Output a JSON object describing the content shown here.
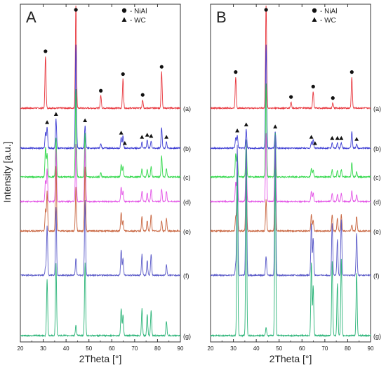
{
  "figure": {
    "y_axis_label": "Intensity [a.u.]"
  },
  "chart_data": [
    {
      "type": "line",
      "panel_letter": "A",
      "xlabel": "2Theta [°]",
      "ylabel": "",
      "xlim": [
        20,
        90
      ],
      "x_ticks": [
        20,
        30,
        40,
        50,
        60,
        70,
        80,
        90
      ],
      "y_ticks_shown": false,
      "legend": {
        "position": "top-right",
        "entries": [
          {
            "marker": "circle",
            "label": "- NiAl"
          },
          {
            "marker": "triangle",
            "label": "- WC"
          }
        ]
      },
      "series": [
        {
          "label": "(a)",
          "color": "#e8363d",
          "baseline": 0,
          "peaks": [
            [
              31.0,
              0.5
            ],
            [
              44.3,
              1.0
            ],
            [
              55.2,
              0.12
            ],
            [
              64.9,
              0.28
            ],
            [
              73.5,
              0.08
            ],
            [
              81.8,
              0.35
            ]
          ],
          "markers": [
            {
              "x": 31.0,
              "symbol": "circle"
            },
            {
              "x": 44.3,
              "symbol": "circle"
            },
            {
              "x": 55.2,
              "symbol": "circle"
            },
            {
              "x": 64.9,
              "symbol": "circle"
            },
            {
              "x": 73.5,
              "symbol": "circle"
            },
            {
              "x": 81.8,
              "symbol": "circle"
            }
          ]
        },
        {
          "label": "(b)",
          "color": "#3f3fd4",
          "baseline": 1,
          "peaks": [
            [
              31.0,
              0.15
            ],
            [
              31.7,
              0.2
            ],
            [
              35.6,
              0.28
            ],
            [
              44.3,
              1.0
            ],
            [
              48.3,
              0.22
            ],
            [
              55.2,
              0.04
            ],
            [
              64.1,
              0.1
            ],
            [
              64.9,
              0.12
            ],
            [
              73.2,
              0.06
            ],
            [
              75.5,
              0.08
            ],
            [
              77.2,
              0.07
            ],
            [
              81.8,
              0.2
            ],
            [
              83.9,
              0.06
            ]
          ],
          "markers": [
            {
              "x": 31.7,
              "symbol": "triangle"
            },
            {
              "x": 35.6,
              "symbol": "triangle"
            },
            {
              "x": 48.3,
              "symbol": "triangle"
            },
            {
              "x": 64.1,
              "symbol": "triangle"
            },
            {
              "x": 65.7,
              "symbol": "triangle"
            },
            {
              "x": 73.2,
              "symbol": "triangle"
            },
            {
              "x": 75.5,
              "symbol": "triangle"
            },
            {
              "x": 77.2,
              "symbol": "triangle"
            },
            {
              "x": 83.9,
              "symbol": "triangle"
            }
          ]
        },
        {
          "label": "(c)",
          "color": "#31d84a",
          "baseline": 2,
          "peaks": [
            [
              31.0,
              0.28
            ],
            [
              31.7,
              0.22
            ],
            [
              35.6,
              0.38
            ],
            [
              44.3,
              0.85
            ],
            [
              48.3,
              0.42
            ],
            [
              55.2,
              0.04
            ],
            [
              64.1,
              0.12
            ],
            [
              64.9,
              0.1
            ],
            [
              73.2,
              0.08
            ],
            [
              75.5,
              0.07
            ],
            [
              77.2,
              0.1
            ],
            [
              81.8,
              0.2
            ],
            [
              83.9,
              0.08
            ]
          ],
          "markers": []
        },
        {
          "label": "(d)",
          "color": "#e353e6",
          "baseline": 3,
          "peaks": [
            [
              31.0,
              0.2
            ],
            [
              31.7,
              0.32
            ],
            [
              35.6,
              0.5
            ],
            [
              44.3,
              0.55
            ],
            [
              48.3,
              0.52
            ],
            [
              64.1,
              0.14
            ],
            [
              64.9,
              0.1
            ],
            [
              73.2,
              0.1
            ],
            [
              75.5,
              0.08
            ],
            [
              77.2,
              0.12
            ],
            [
              81.8,
              0.12
            ],
            [
              83.9,
              0.1
            ]
          ],
          "markers": []
        },
        {
          "label": "(e)",
          "color": "#c8643e",
          "baseline": 4,
          "peaks": [
            [
              31.0,
              0.2
            ],
            [
              31.7,
              0.38
            ],
            [
              35.6,
              0.62
            ],
            [
              44.3,
              0.42
            ],
            [
              48.3,
              0.62
            ],
            [
              64.1,
              0.18
            ],
            [
              64.9,
              0.1
            ],
            [
              73.2,
              0.14
            ],
            [
              75.5,
              0.1
            ],
            [
              77.2,
              0.16
            ],
            [
              81.8,
              0.1
            ],
            [
              83.9,
              0.12
            ]
          ],
          "markers": []
        },
        {
          "label": "(f)",
          "color": "#5a5ac8",
          "baseline": 5,
          "peaks": [
            [
              31.0,
              0.08
            ],
            [
              31.7,
              0.48
            ],
            [
              35.6,
              0.66
            ],
            [
              44.3,
              0.16
            ],
            [
              48.3,
              0.72
            ],
            [
              64.1,
              0.24
            ],
            [
              64.9,
              0.16
            ],
            [
              73.2,
              0.2
            ],
            [
              75.5,
              0.14
            ],
            [
              77.2,
              0.2
            ],
            [
              83.9,
              0.1
            ]
          ],
          "markers": []
        },
        {
          "label": "(g)",
          "color": "#2bb478",
          "baseline": 6,
          "peaks": [
            [
              31.7,
              0.54
            ],
            [
              35.6,
              0.7
            ],
            [
              44.3,
              0.1
            ],
            [
              48.3,
              0.7
            ],
            [
              64.1,
              0.26
            ],
            [
              64.9,
              0.2
            ],
            [
              73.2,
              0.26
            ],
            [
              75.5,
              0.2
            ],
            [
              77.2,
              0.24
            ],
            [
              83.9,
              0.14
            ]
          ],
          "markers": []
        }
      ]
    },
    {
      "type": "line",
      "panel_letter": "B",
      "xlabel": "2Theta [°]",
      "ylabel": "",
      "xlim": [
        20,
        90
      ],
      "x_ticks": [
        20,
        30,
        40,
        50,
        60,
        70,
        80,
        90
      ],
      "y_ticks_shown": false,
      "legend": {
        "position": "top-right",
        "entries": [
          {
            "marker": "circle",
            "label": "- NiAl"
          },
          {
            "marker": "triangle",
            "label": "- WC"
          }
        ]
      },
      "series": [
        {
          "label": "(a)",
          "color": "#e8363d",
          "baseline": 0,
          "peaks": [
            [
              31.0,
              0.3
            ],
            [
              44.3,
              1.0
            ],
            [
              55.2,
              0.06
            ],
            [
              64.9,
              0.16
            ],
            [
              73.5,
              0.05
            ],
            [
              81.8,
              0.3
            ]
          ],
          "markers": [
            {
              "x": 31.0,
              "symbol": "circle"
            },
            {
              "x": 44.3,
              "symbol": "circle"
            },
            {
              "x": 55.2,
              "symbol": "circle"
            },
            {
              "x": 64.9,
              "symbol": "circle"
            },
            {
              "x": 73.5,
              "symbol": "circle"
            },
            {
              "x": 81.8,
              "symbol": "circle"
            }
          ]
        },
        {
          "label": "(b)",
          "color": "#3f3fd4",
          "baseline": 1,
          "peaks": [
            [
              31.0,
              0.1
            ],
            [
              31.7,
              0.12
            ],
            [
              35.6,
              0.18
            ],
            [
              44.3,
              1.0
            ],
            [
              48.3,
              0.16
            ],
            [
              64.1,
              0.06
            ],
            [
              64.9,
              0.08
            ],
            [
              73.2,
              0.05
            ],
            [
              75.5,
              0.05
            ],
            [
              77.2,
              0.05
            ],
            [
              81.8,
              0.16
            ],
            [
              83.9,
              0.04
            ]
          ],
          "markers": [
            {
              "x": 31.7,
              "symbol": "triangle"
            },
            {
              "x": 35.6,
              "symbol": "triangle"
            },
            {
              "x": 48.3,
              "symbol": "triangle"
            },
            {
              "x": 64.1,
              "symbol": "triangle"
            },
            {
              "x": 65.7,
              "symbol": "triangle"
            },
            {
              "x": 73.2,
              "symbol": "triangle"
            },
            {
              "x": 75.5,
              "symbol": "triangle"
            },
            {
              "x": 77.2,
              "symbol": "triangle"
            },
            {
              "x": 83.9,
              "symbol": "triangle"
            }
          ]
        },
        {
          "label": "(c)",
          "color": "#31d84a",
          "baseline": 2,
          "peaks": [
            [
              31.0,
              0.22
            ],
            [
              31.7,
              0.2
            ],
            [
              35.6,
              0.36
            ],
            [
              44.3,
              0.9
            ],
            [
              48.3,
              0.42
            ],
            [
              64.1,
              0.08
            ],
            [
              64.9,
              0.07
            ],
            [
              73.2,
              0.07
            ],
            [
              75.5,
              0.06
            ],
            [
              77.2,
              0.07
            ],
            [
              81.8,
              0.14
            ],
            [
              83.9,
              0.05
            ]
          ],
          "markers": []
        },
        {
          "label": "(d)",
          "color": "#e353e6",
          "baseline": 3,
          "peaks": [
            [
              31.0,
              0.18
            ],
            [
              31.7,
              0.28
            ],
            [
              35.6,
              0.46
            ],
            [
              44.3,
              0.66
            ],
            [
              48.3,
              0.56
            ],
            [
              64.1,
              0.1
            ],
            [
              64.9,
              0.08
            ],
            [
              73.2,
              0.08
            ],
            [
              75.5,
              0.07
            ],
            [
              77.2,
              0.08
            ],
            [
              81.8,
              0.1
            ],
            [
              83.9,
              0.06
            ]
          ],
          "markers": []
        },
        {
          "label": "(e)",
          "color": "#c8643e",
          "baseline": 4,
          "peaks": [
            [
              31.0,
              0.14
            ],
            [
              31.7,
              0.46
            ],
            [
              35.6,
              0.62
            ],
            [
              44.3,
              0.3
            ],
            [
              48.3,
              0.7
            ],
            [
              64.1,
              0.16
            ],
            [
              64.9,
              0.1
            ],
            [
              73.2,
              0.16
            ],
            [
              75.5,
              0.12
            ],
            [
              77.2,
              0.16
            ],
            [
              81.8,
              0.06
            ],
            [
              83.9,
              0.14
            ]
          ],
          "markers": []
        },
        {
          "label": "(f)",
          "color": "#5a5ac8",
          "baseline": 5,
          "peaks": [
            [
              31.0,
              0.1
            ],
            [
              31.7,
              1.25
            ],
            [
              35.6,
              1.3
            ],
            [
              44.3,
              0.18
            ],
            [
              48.3,
              1.35
            ],
            [
              64.1,
              0.5
            ],
            [
              64.9,
              0.36
            ],
            [
              73.2,
              0.5
            ],
            [
              75.5,
              0.34
            ],
            [
              77.2,
              0.54
            ],
            [
              83.9,
              0.4
            ]
          ],
          "markers": []
        },
        {
          "label": "(g)",
          "color": "#2bb478",
          "baseline": 6,
          "peaks": [
            [
              31.7,
              1.55
            ],
            [
              35.6,
              1.6
            ],
            [
              44.3,
              0.08
            ],
            [
              48.3,
              1.6
            ],
            [
              64.1,
              0.7
            ],
            [
              64.9,
              0.48
            ],
            [
              73.2,
              0.72
            ],
            [
              75.5,
              0.5
            ],
            [
              77.2,
              0.74
            ],
            [
              83.9,
              0.6
            ]
          ],
          "markers": []
        }
      ]
    }
  ]
}
